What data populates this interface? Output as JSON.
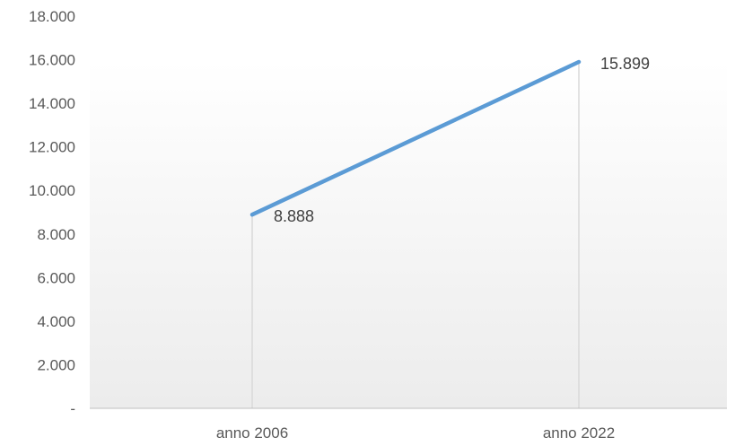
{
  "chart_data": {
    "type": "line",
    "categories": [
      "anno 2006",
      "anno 2022"
    ],
    "series": [
      {
        "values": [
          8888,
          15899
        ],
        "color": "#5b9bd5"
      }
    ],
    "data_labels": [
      "8.888",
      "15.899"
    ],
    "ylim": [
      0,
      18000
    ],
    "yticks": [
      {
        "value": 0,
        "label": "-"
      },
      {
        "value": 2000,
        "label": "2.000"
      },
      {
        "value": 4000,
        "label": "4.000"
      },
      {
        "value": 6000,
        "label": "6.000"
      },
      {
        "value": 8000,
        "label": "8.000"
      },
      {
        "value": 10000,
        "label": "10.000"
      },
      {
        "value": 12000,
        "label": "12.000"
      },
      {
        "value": 14000,
        "label": "14.000"
      },
      {
        "value": 16000,
        "label": "16.000"
      },
      {
        "value": 18000,
        "label": "18.000"
      }
    ],
    "drop_lines": true,
    "gridlines": false,
    "legend": "none",
    "colors": {
      "axis": "#bfbfbf",
      "drop_line": "#d9d9d9",
      "text": "#595959",
      "label": "#404040"
    }
  }
}
